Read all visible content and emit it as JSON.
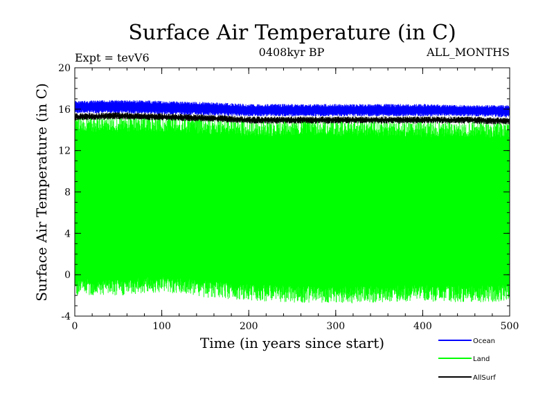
{
  "chart_data": {
    "type": "line",
    "title": "Surface Air Temperature (in C)",
    "subtitle": "0408kyr BP",
    "experiment": "Expt = tevV6",
    "period": "ALL_MONTHS",
    "xlabel": "Time (in years since start)",
    "ylabel": "Surface Air Temperature (in C)",
    "xlim": [
      0,
      500
    ],
    "ylim": [
      -4,
      20
    ],
    "x_ticks": [
      "0",
      "100",
      "200",
      "300",
      "400",
      "500"
    ],
    "y_ticks": [
      "-4",
      "0",
      "4",
      "8",
      "12",
      "16",
      "20"
    ],
    "grid": false,
    "legend_position": "bottom-right",
    "series": [
      {
        "name": "Ocean",
        "color": "#0000ff",
        "x": [
          0,
          50,
          100,
          150,
          200,
          250,
          300,
          350,
          400,
          450,
          500
        ],
        "min": [
          15.6,
          15.6,
          15.5,
          15.4,
          15.3,
          15.3,
          15.3,
          15.3,
          15.3,
          15.3,
          15.2
        ],
        "max": [
          16.8,
          16.9,
          16.8,
          16.7,
          16.5,
          16.5,
          16.5,
          16.5,
          16.5,
          16.4,
          16.4
        ]
      },
      {
        "name": "Land",
        "color": "#00ff00",
        "x": [
          0,
          50,
          100,
          150,
          200,
          250,
          300,
          350,
          400,
          450,
          500
        ],
        "min": [
          -2.0,
          -2.1,
          -1.7,
          -2.2,
          -2.5,
          -2.7,
          -2.8,
          -2.7,
          -2.6,
          -2.7,
          -2.6
        ],
        "max": [
          15.3,
          15.4,
          15.4,
          15.2,
          15.0,
          15.0,
          15.0,
          15.0,
          14.9,
          14.9,
          14.8
        ]
      },
      {
        "name": "AllSurf",
        "color": "#000000",
        "x": [
          0,
          50,
          100,
          150,
          200,
          250,
          300,
          350,
          400,
          450,
          500
        ],
        "min": [
          14.9,
          15.0,
          14.9,
          14.8,
          14.6,
          14.6,
          14.6,
          14.6,
          14.6,
          14.6,
          14.5
        ],
        "max": [
          15.6,
          15.7,
          15.6,
          15.5,
          15.3,
          15.3,
          15.3,
          15.3,
          15.3,
          15.3,
          15.2
        ]
      }
    ]
  }
}
